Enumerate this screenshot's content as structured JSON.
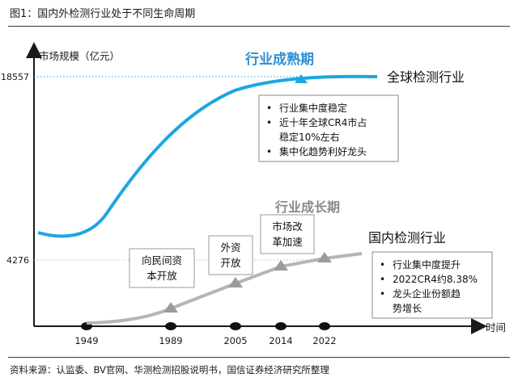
{
  "figure_title": "图1：国内外检测行业处于不同生命周期",
  "source_note": "资料来源：认监委、BV官网、华测检测招股说明书，国信证券经济研究所整理",
  "colors": {
    "global": "#1ea6e0",
    "domestic": "#b5b5b5",
    "phase_mature": "#2f8fd6",
    "phase_growth": "#8a8a8a",
    "axis": "#1a1a1a"
  },
  "chart_data": {
    "type": "line",
    "title": "",
    "ylabel": "市场规模（亿元）",
    "xlabel": "时间",
    "y_ticks": [
      4276,
      18557
    ],
    "x_ticks": [
      "1949",
      "1989",
      "2005",
      "2014",
      "2022"
    ],
    "grid": false,
    "series": [
      {
        "name": "全球检测行业",
        "kind": "global-s-curve"
      },
      {
        "name": "国内检测行业",
        "kind": "domestic-growth",
        "milestones": [
          {
            "x": "1989",
            "label_lines": [
              "向民间资",
              "本开放"
            ]
          },
          {
            "x": "2005",
            "label_lines": [
              "外资",
              "开放"
            ]
          },
          {
            "x": "2014",
            "label_lines": [
              "市场改",
              "革加速"
            ]
          },
          {
            "x": "2022",
            "label_lines": []
          }
        ]
      }
    ],
    "phases": [
      {
        "label": "行业成熟期"
      },
      {
        "label": "行业成长期"
      }
    ],
    "annotations": {
      "global": [
        "行业集中度稳定",
        "近十年全球CR4市占",
        "稳定10%左右",
        "集中化趋势利好龙头"
      ],
      "domestic": [
        "行业集中度提升",
        "2022CR4约8.38%",
        "龙头企业份额趋",
        "势增长"
      ]
    }
  }
}
